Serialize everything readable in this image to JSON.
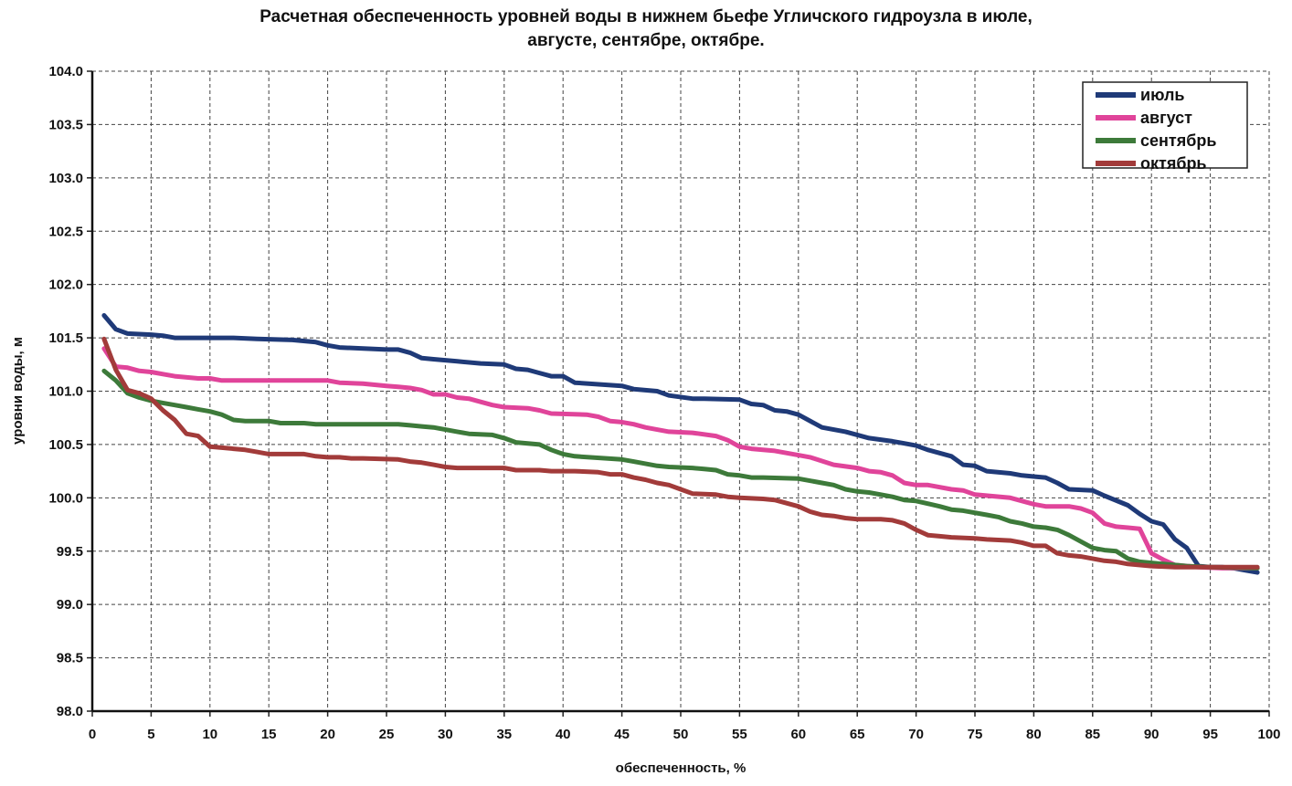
{
  "chart_data": {
    "type": "line",
    "title_line1": "Расчетная обеспеченность уровней воды в нижнем бьефе Угличского гидроузла в июле,",
    "title_line2": "августе, сентябре, октябре.",
    "xlabel": "обеспеченность, %",
    "ylabel": "уровни воды, м",
    "xlim": [
      0,
      100
    ],
    "ylim": [
      98.0,
      104.0
    ],
    "x_ticks": [
      "0",
      "5",
      "10",
      "15",
      "20",
      "25",
      "30",
      "35",
      "40",
      "45",
      "50",
      "55",
      "60",
      "65",
      "70",
      "75",
      "80",
      "85",
      "90",
      "95",
      "100"
    ],
    "y_ticks": [
      "104.0",
      "103.5",
      "103.0",
      "102.5",
      "102.0",
      "101.5",
      "101.0",
      "100.5",
      "100.0",
      "99.5",
      "99.0",
      "98.5",
      "98.0"
    ],
    "grid": true,
    "legend_position": "top-right",
    "series": [
      {
        "name": "июль",
        "color": "#1f3a78",
        "points": [
          [
            1,
            101.71
          ],
          [
            2,
            101.58
          ],
          [
            3,
            101.54
          ],
          [
            5,
            101.53
          ],
          [
            6,
            101.52
          ],
          [
            7,
            101.5
          ],
          [
            10,
            101.5
          ],
          [
            12,
            101.5
          ],
          [
            14,
            101.49
          ],
          [
            17,
            101.48
          ],
          [
            19,
            101.46
          ],
          [
            20,
            101.43
          ],
          [
            21,
            101.41
          ],
          [
            25,
            101.39
          ],
          [
            26,
            101.39
          ],
          [
            27,
            101.36
          ],
          [
            28,
            101.31
          ],
          [
            29,
            101.3
          ],
          [
            31,
            101.28
          ],
          [
            33,
            101.26
          ],
          [
            35,
            101.25
          ],
          [
            36,
            101.21
          ],
          [
            37,
            101.2
          ],
          [
            38,
            101.17
          ],
          [
            39,
            101.14
          ],
          [
            40,
            101.14
          ],
          [
            41,
            101.08
          ],
          [
            45,
            101.05
          ],
          [
            46,
            101.02
          ],
          [
            48,
            101.0
          ],
          [
            49,
            100.96
          ],
          [
            51,
            100.93
          ],
          [
            52,
            100.93
          ],
          [
            55,
            100.92
          ],
          [
            56,
            100.88
          ],
          [
            57,
            100.87
          ],
          [
            58,
            100.82
          ],
          [
            59,
            100.81
          ],
          [
            60,
            100.78
          ],
          [
            62,
            100.66
          ],
          [
            64,
            100.62
          ],
          [
            65,
            100.59
          ],
          [
            66,
            100.56
          ],
          [
            68,
            100.53
          ],
          [
            69,
            100.51
          ],
          [
            70,
            100.49
          ],
          [
            71,
            100.45
          ],
          [
            72,
            100.42
          ],
          [
            73,
            100.39
          ],
          [
            74,
            100.31
          ],
          [
            75,
            100.3
          ],
          [
            76,
            100.25
          ],
          [
            78,
            100.23
          ],
          [
            79,
            100.21
          ],
          [
            80,
            100.2
          ],
          [
            81,
            100.19
          ],
          [
            82,
            100.14
          ],
          [
            83,
            100.08
          ],
          [
            85,
            100.07
          ],
          [
            86,
            100.02
          ],
          [
            88,
            99.93
          ],
          [
            89,
            99.85
          ],
          [
            90,
            99.78
          ],
          [
            91,
            99.75
          ],
          [
            92,
            99.61
          ],
          [
            93,
            99.53
          ],
          [
            94,
            99.36
          ],
          [
            95,
            99.35
          ],
          [
            96,
            99.35
          ],
          [
            97,
            99.34
          ],
          [
            98,
            99.32
          ],
          [
            99,
            99.3
          ]
        ]
      },
      {
        "name": "август",
        "color": "#e0449a",
        "points": [
          [
            1,
            101.4
          ],
          [
            2,
            101.23
          ],
          [
            3,
            101.22
          ],
          [
            4,
            101.19
          ],
          [
            5,
            101.18
          ],
          [
            6,
            101.16
          ],
          [
            7,
            101.14
          ],
          [
            9,
            101.12
          ],
          [
            10,
            101.12
          ],
          [
            11,
            101.1
          ],
          [
            14,
            101.1
          ],
          [
            18,
            101.1
          ],
          [
            20,
            101.1
          ],
          [
            21,
            101.08
          ],
          [
            23,
            101.07
          ],
          [
            25,
            101.05
          ],
          [
            26,
            101.04
          ],
          [
            27,
            101.03
          ],
          [
            28,
            101.01
          ],
          [
            29,
            100.97
          ],
          [
            30,
            100.97
          ],
          [
            31,
            100.94
          ],
          [
            32,
            100.93
          ],
          [
            33,
            100.9
          ],
          [
            34,
            100.87
          ],
          [
            35,
            100.85
          ],
          [
            37,
            100.84
          ],
          [
            38,
            100.82
          ],
          [
            39,
            100.79
          ],
          [
            42,
            100.78
          ],
          [
            43,
            100.76
          ],
          [
            44,
            100.72
          ],
          [
            45,
            100.71
          ],
          [
            46,
            100.69
          ],
          [
            47,
            100.66
          ],
          [
            48,
            100.64
          ],
          [
            49,
            100.62
          ],
          [
            51,
            100.61
          ],
          [
            53,
            100.58
          ],
          [
            54,
            100.54
          ],
          [
            55,
            100.48
          ],
          [
            56,
            100.46
          ],
          [
            58,
            100.44
          ],
          [
            60,
            100.4
          ],
          [
            61,
            100.38
          ],
          [
            63,
            100.31
          ],
          [
            65,
            100.28
          ],
          [
            66,
            100.25
          ],
          [
            67,
            100.24
          ],
          [
            68,
            100.21
          ],
          [
            69,
            100.14
          ],
          [
            70,
            100.12
          ],
          [
            71,
            100.12
          ],
          [
            73,
            100.08
          ],
          [
            74,
            100.07
          ],
          [
            75,
            100.03
          ],
          [
            78,
            100.0
          ],
          [
            79,
            99.97
          ],
          [
            80,
            99.94
          ],
          [
            81,
            99.92
          ],
          [
            83,
            99.92
          ],
          [
            84,
            99.9
          ],
          [
            85,
            99.86
          ],
          [
            86,
            99.76
          ],
          [
            87,
            99.73
          ],
          [
            88,
            99.72
          ],
          [
            89,
            99.71
          ],
          [
            90,
            99.48
          ],
          [
            91,
            99.42
          ],
          [
            92,
            99.37
          ],
          [
            94,
            99.35
          ],
          [
            96,
            99.34
          ],
          [
            99,
            99.34
          ]
        ]
      },
      {
        "name": "сентябрь",
        "color": "#3d7a3a",
        "points": [
          [
            1,
            101.19
          ],
          [
            2,
            101.1
          ],
          [
            3,
            100.98
          ],
          [
            4,
            100.94
          ],
          [
            5,
            100.91
          ],
          [
            6,
            100.89
          ],
          [
            7,
            100.87
          ],
          [
            8,
            100.85
          ],
          [
            9,
            100.83
          ],
          [
            10,
            100.81
          ],
          [
            11,
            100.78
          ],
          [
            12,
            100.73
          ],
          [
            13,
            100.72
          ],
          [
            15,
            100.72
          ],
          [
            16,
            100.7
          ],
          [
            18,
            100.7
          ],
          [
            19,
            100.69
          ],
          [
            20,
            100.69
          ],
          [
            25,
            100.69
          ],
          [
            26,
            100.69
          ],
          [
            27,
            100.68
          ],
          [
            28,
            100.67
          ],
          [
            29,
            100.66
          ],
          [
            30,
            100.64
          ],
          [
            31,
            100.62
          ],
          [
            32,
            100.6
          ],
          [
            34,
            100.59
          ],
          [
            35,
            100.56
          ],
          [
            36,
            100.52
          ],
          [
            37,
            100.51
          ],
          [
            38,
            100.5
          ],
          [
            39,
            100.45
          ],
          [
            40,
            100.41
          ],
          [
            41,
            100.39
          ],
          [
            45,
            100.36
          ],
          [
            46,
            100.34
          ],
          [
            48,
            100.3
          ],
          [
            49,
            100.29
          ],
          [
            51,
            100.28
          ],
          [
            52,
            100.27
          ],
          [
            53,
            100.26
          ],
          [
            54,
            100.22
          ],
          [
            55,
            100.21
          ],
          [
            56,
            100.19
          ],
          [
            57,
            100.19
          ],
          [
            60,
            100.18
          ],
          [
            62,
            100.14
          ],
          [
            63,
            100.12
          ],
          [
            64,
            100.08
          ],
          [
            65,
            100.06
          ],
          [
            66,
            100.05
          ],
          [
            67,
            100.03
          ],
          [
            68,
            100.01
          ],
          [
            69,
            99.98
          ],
          [
            70,
            99.97
          ],
          [
            72,
            99.92
          ],
          [
            73,
            99.89
          ],
          [
            74,
            99.88
          ],
          [
            76,
            99.84
          ],
          [
            77,
            99.82
          ],
          [
            78,
            99.78
          ],
          [
            79,
            99.76
          ],
          [
            80,
            99.73
          ],
          [
            81,
            99.72
          ],
          [
            82,
            99.7
          ],
          [
            83,
            99.65
          ],
          [
            84,
            99.59
          ],
          [
            85,
            99.53
          ],
          [
            86,
            99.51
          ],
          [
            87,
            99.5
          ],
          [
            88,
            99.43
          ],
          [
            89,
            99.4
          ],
          [
            91,
            99.38
          ],
          [
            93,
            99.36
          ],
          [
            95,
            99.35
          ],
          [
            99,
            99.34
          ]
        ]
      },
      {
        "name": "октябрь",
        "color": "#a23b3a",
        "points": [
          [
            1,
            101.49
          ],
          [
            2,
            101.2
          ],
          [
            3,
            101.01
          ],
          [
            4,
            100.98
          ],
          [
            5,
            100.93
          ],
          [
            6,
            100.82
          ],
          [
            7,
            100.73
          ],
          [
            8,
            100.6
          ],
          [
            9,
            100.58
          ],
          [
            10,
            100.48
          ],
          [
            11,
            100.47
          ],
          [
            13,
            100.45
          ],
          [
            14,
            100.43
          ],
          [
            15,
            100.41
          ],
          [
            18,
            100.41
          ],
          [
            19,
            100.39
          ],
          [
            20,
            100.38
          ],
          [
            21,
            100.38
          ],
          [
            22,
            100.37
          ],
          [
            23,
            100.37
          ],
          [
            26,
            100.36
          ],
          [
            27,
            100.34
          ],
          [
            28,
            100.33
          ],
          [
            29,
            100.31
          ],
          [
            30,
            100.29
          ],
          [
            31,
            100.28
          ],
          [
            35,
            100.28
          ],
          [
            36,
            100.26
          ],
          [
            38,
            100.26
          ],
          [
            39,
            100.25
          ],
          [
            41,
            100.25
          ],
          [
            43,
            100.24
          ],
          [
            44,
            100.22
          ],
          [
            45,
            100.22
          ],
          [
            46,
            100.19
          ],
          [
            47,
            100.17
          ],
          [
            48,
            100.14
          ],
          [
            49,
            100.12
          ],
          [
            50,
            100.08
          ],
          [
            51,
            100.04
          ],
          [
            53,
            100.03
          ],
          [
            54,
            100.01
          ],
          [
            55,
            100.0
          ],
          [
            57,
            99.99
          ],
          [
            58,
            99.98
          ],
          [
            59,
            99.95
          ],
          [
            60,
            99.92
          ],
          [
            61,
            99.87
          ],
          [
            62,
            99.84
          ],
          [
            63,
            99.83
          ],
          [
            64,
            99.81
          ],
          [
            65,
            99.8
          ],
          [
            67,
            99.8
          ],
          [
            68,
            99.79
          ],
          [
            69,
            99.76
          ],
          [
            70,
            99.7
          ],
          [
            71,
            99.65
          ],
          [
            72,
            99.64
          ],
          [
            73,
            99.63
          ],
          [
            75,
            99.62
          ],
          [
            76,
            99.61
          ],
          [
            78,
            99.6
          ],
          [
            79,
            99.58
          ],
          [
            80,
            99.55
          ],
          [
            81,
            99.55
          ],
          [
            82,
            99.48
          ],
          [
            83,
            99.46
          ],
          [
            84,
            99.45
          ],
          [
            85,
            99.43
          ],
          [
            86,
            99.41
          ],
          [
            87,
            99.4
          ],
          [
            88,
            99.38
          ],
          [
            90,
            99.36
          ],
          [
            92,
            99.35
          ],
          [
            93,
            99.35
          ],
          [
            99,
            99.35
          ]
        ]
      }
    ]
  }
}
